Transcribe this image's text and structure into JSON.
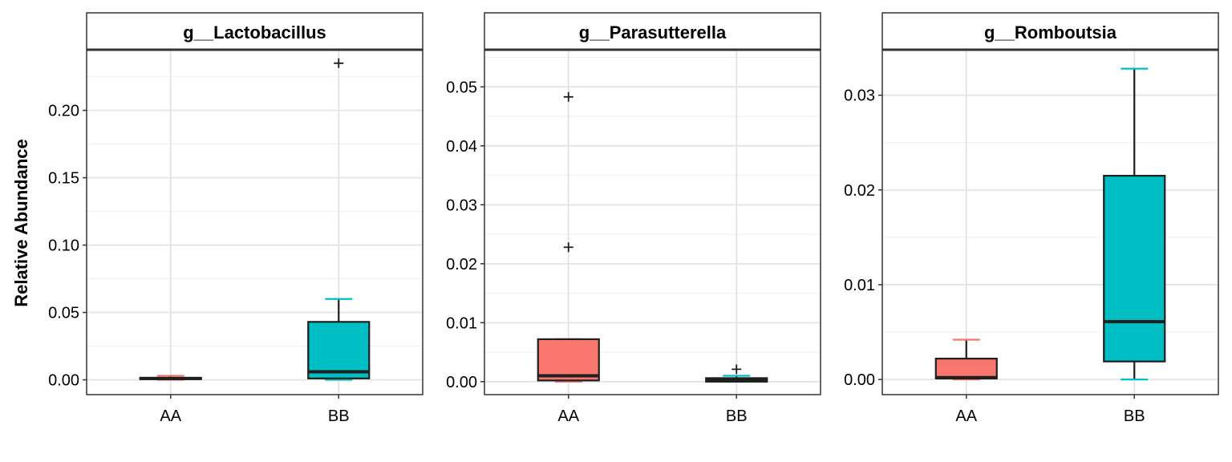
{
  "chart_data": {
    "type": "boxplot",
    "ylabel": "Relative Abundance",
    "xlabel": "",
    "categories": [
      "AA",
      "BB"
    ],
    "colors": {
      "AA": "#F8766D",
      "BB": "#00BFC4"
    },
    "grid": true,
    "legend": "none",
    "panels": [
      {
        "title": "g__Lactobacillus",
        "ylim": [
          -0.011,
          0.245
        ],
        "yticks": [
          0.0,
          0.05,
          0.1,
          0.15,
          0.2
        ],
        "ytick_labels": [
          "0.00",
          "0.05",
          "0.10",
          "0.15",
          "0.20"
        ],
        "boxes": [
          {
            "group": "AA",
            "whisker_low": 0.0,
            "q1": 0.0005,
            "median": 0.001,
            "q3": 0.0015,
            "whisker_high": 0.003,
            "outliers": []
          },
          {
            "group": "BB",
            "whisker_low": 0.0,
            "q1": 0.001,
            "median": 0.006,
            "q3": 0.043,
            "whisker_high": 0.06,
            "outliers": [
              0.235
            ]
          }
        ]
      },
      {
        "title": "g__Parasutterella",
        "ylim": [
          -0.0022,
          0.0563
        ],
        "yticks": [
          0.0,
          0.01,
          0.02,
          0.03,
          0.04,
          0.05
        ],
        "ytick_labels": [
          "0.00",
          "0.01",
          "0.02",
          "0.03",
          "0.04",
          "0.05"
        ],
        "boxes": [
          {
            "group": "AA",
            "whisker_low": 0.0,
            "q1": 0.0002,
            "median": 0.001,
            "q3": 0.0072,
            "whisker_high": 0.0072,
            "outliers": [
              0.0228,
              0.0483
            ]
          },
          {
            "group": "BB",
            "whisker_low": 0.0,
            "q1": 0.0,
            "median": 0.0002,
            "q3": 0.0006,
            "whisker_high": 0.001,
            "outliers": [
              0.0021
            ]
          }
        ]
      },
      {
        "title": "g__Romboutsia",
        "ylim": [
          -0.0016,
          0.0348
        ],
        "yticks": [
          0.0,
          0.01,
          0.02,
          0.03
        ],
        "ytick_labels": [
          "0.00",
          "0.01",
          "0.02",
          "0.03"
        ],
        "boxes": [
          {
            "group": "AA",
            "whisker_low": 0.0,
            "q1": 0.0001,
            "median": 0.0002,
            "q3": 0.0022,
            "whisker_high": 0.0042,
            "outliers": []
          },
          {
            "group": "BB",
            "whisker_low": 0.0,
            "q1": 0.0019,
            "median": 0.0061,
            "q3": 0.0215,
            "whisker_high": 0.0328,
            "outliers": []
          }
        ]
      }
    ]
  }
}
